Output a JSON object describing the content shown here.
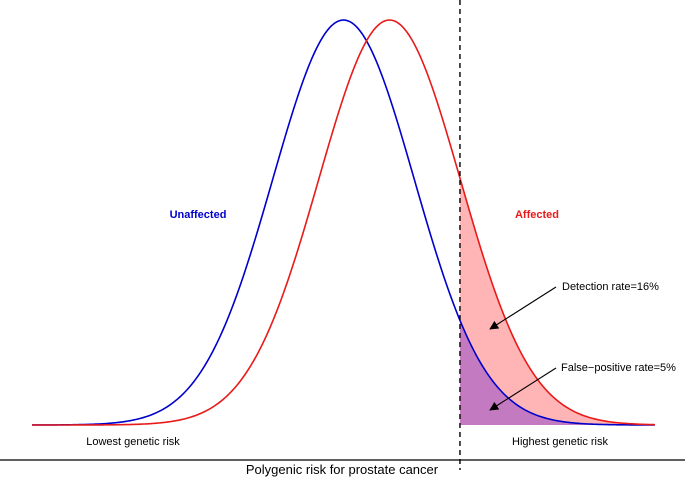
{
  "chart_data": {
    "type": "area",
    "title": "",
    "xlabel": "Polygenic risk for prostate cancer",
    "ylabel": "",
    "grid": false,
    "x_range": [
      -4.4,
      4.4
    ],
    "threshold_x": 1.645,
    "series": [
      {
        "name": "Unaffected",
        "mean": 0.0,
        "sd": 1.0,
        "color": "#0000cc"
      },
      {
        "name": "Affected",
        "mean": 0.65,
        "sd": 1.0,
        "color": "#e81a1a"
      }
    ],
    "fills": {
      "affected_tail": "#ffb5b5",
      "unaffected_tail": "#c47ac0"
    },
    "x_endpoint_labels": {
      "left": "Lowest genetic risk",
      "right": "Highest genetic risk"
    },
    "annotations": [
      {
        "text": "Detection rate=16%",
        "points_to": "Affected tail"
      },
      {
        "text": "False−positive rate=5%",
        "points_to": "Unaffected tail"
      }
    ]
  }
}
